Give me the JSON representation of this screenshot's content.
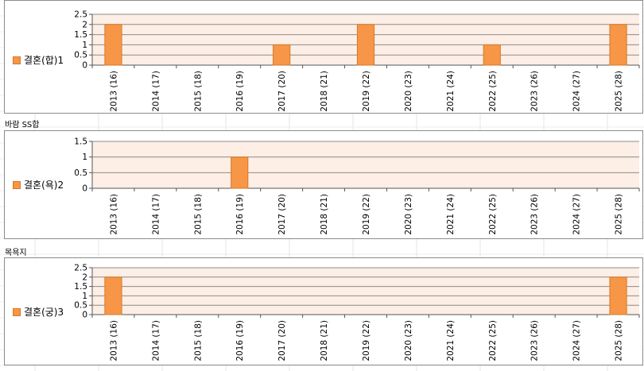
{
  "spreadsheet": {
    "cell_labels": [
      "바람 SS합",
      "목욕지"
    ]
  },
  "colors": {
    "bar_fill": "#f79646",
    "bar_stroke": "#d47a2a",
    "plot_background": "#fdeee6",
    "gridline": "#8c8c8c"
  },
  "chart_data": [
    {
      "type": "bar",
      "categories": [
        "2013 (16)",
        "2014 (17)",
        "2015 (18)",
        "2016 (19)",
        "2017 (20)",
        "2018 (21)",
        "2019 (22)",
        "2020 (23)",
        "2021 (24)",
        "2022 (25)",
        "2023 (26)",
        "2024 (27)",
        "2025 (28)"
      ],
      "series": [
        {
          "name": "결혼(합)1",
          "values": [
            2,
            0,
            0,
            0,
            1,
            0,
            2,
            0,
            0,
            1,
            0,
            0,
            2
          ]
        }
      ],
      "yticks": [
        "0",
        "0.5",
        "1",
        "1.5",
        "2",
        "2.5"
      ],
      "ylim": [
        0,
        2.5
      ],
      "grid": true,
      "legend": "left"
    },
    {
      "type": "bar",
      "categories": [
        "2013 (16)",
        "2014 (17)",
        "2015 (18)",
        "2016 (19)",
        "2017 (20)",
        "2018 (21)",
        "2019 (22)",
        "2020 (23)",
        "2021 (24)",
        "2022 (25)",
        "2023 (26)",
        "2024 (27)",
        "2025 (28)"
      ],
      "series": [
        {
          "name": "결혼(욕)2",
          "values": [
            0,
            0,
            0,
            1,
            0,
            0,
            0,
            0,
            0,
            0,
            0,
            0,
            0
          ]
        }
      ],
      "yticks": [
        "0",
        "0.5",
        "1",
        "1.5"
      ],
      "ylim": [
        0,
        1.5
      ],
      "grid": true,
      "legend": "left"
    },
    {
      "type": "bar",
      "categories": [
        "2013 (16)",
        "2014 (17)",
        "2015 (18)",
        "2016 (19)",
        "2017 (20)",
        "2018 (21)",
        "2019 (22)",
        "2020 (23)",
        "2021 (24)",
        "2022 (25)",
        "2023 (26)",
        "2024 (27)",
        "2025 (28)"
      ],
      "series": [
        {
          "name": "결혼(궁)3",
          "values": [
            2,
            0,
            0,
            0,
            0,
            0,
            0,
            0,
            0,
            0,
            0,
            0,
            2
          ]
        }
      ],
      "yticks": [
        "0",
        "0.5",
        "1",
        "1.5",
        "2",
        "2.5"
      ],
      "ylim": [
        0,
        2.5
      ],
      "grid": true,
      "legend": "left"
    }
  ]
}
